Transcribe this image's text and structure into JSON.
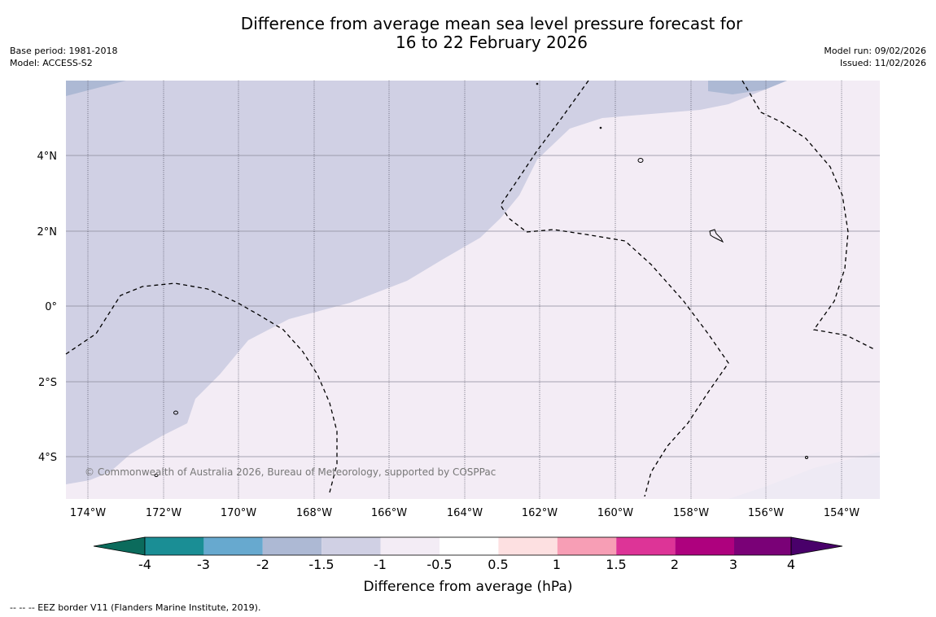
{
  "title_line1": "Difference from average mean sea level pressure forecast for",
  "title_line2": "16 to 22 February 2026",
  "base_period": "Base period: 1981-2018",
  "model": "Model: ACCESS-S2",
  "model_run": "Model run: 09/02/2026",
  "issued": "Issued: 11/02/2026",
  "credit": "© Commonwealth of Australia 2026, Bureau of Meteorology, supported by COSPPac",
  "map": {
    "lat_labels": [
      "4°N",
      "2°N",
      "0°",
      "2°S",
      "4°S"
    ],
    "lon_labels": [
      "174°W",
      "172°W",
      "170°W",
      "168°W",
      "166°W",
      "164°W",
      "162°W",
      "160°W",
      "158°W",
      "156°W",
      "154°W"
    ]
  },
  "colorbar": {
    "title": "Difference from average (hPa)",
    "tick_labels": [
      "-4",
      "-3",
      "-2",
      "-1.5",
      "-1",
      "-0.5",
      "0.5",
      "1",
      "1.5",
      "2",
      "3",
      "4"
    ],
    "colors": [
      "#0b6b5c",
      "#1a8e95",
      "#67a9cf",
      "#adb9d4",
      "#d0d0e4",
      "#f3ecf5",
      "#ffffff",
      "#fde0e1",
      "#f79eb5",
      "#dd3497",
      "#ae017e",
      "#7a0177",
      "#49006a"
    ]
  },
  "eez_note": "--  --  -- EEZ border V11 (Flanders Marine Institute, 2019)."
}
